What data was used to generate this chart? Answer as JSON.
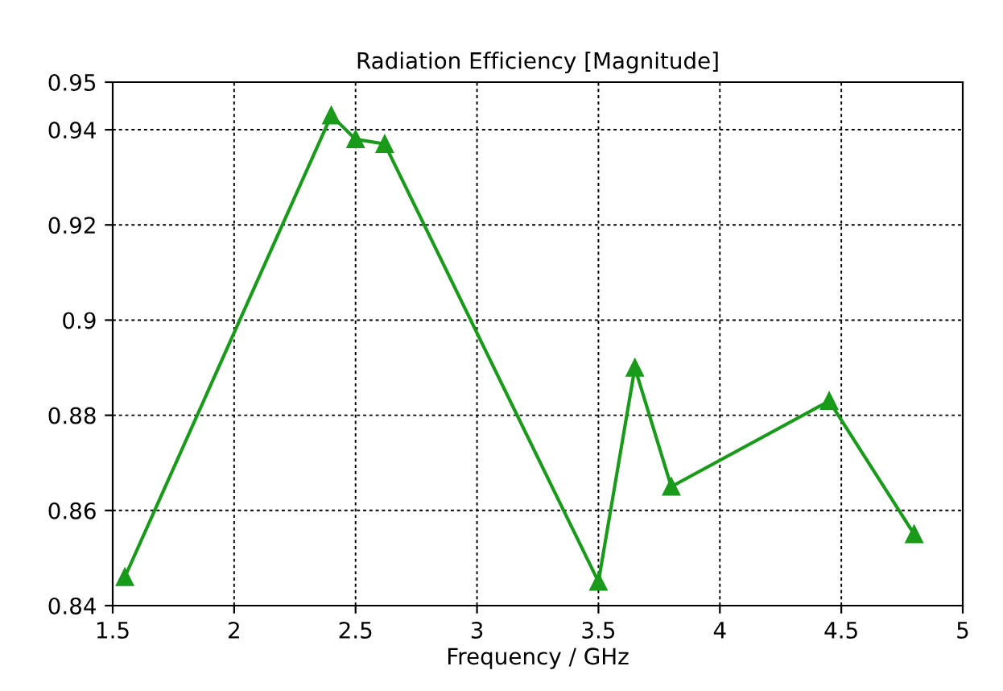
{
  "chart_data": {
    "type": "line",
    "title": "Radiation Efficiency [Magnitude]",
    "xlabel": "Frequency / GHz",
    "series": [
      {
        "color": "#1a9a1a",
        "x": [
          1.55,
          2.4,
          2.5,
          2.62,
          3.5,
          3.65,
          3.8,
          4.45,
          4.8
        ],
        "values": [
          0.846,
          0.943,
          0.938,
          0.937,
          0.845,
          0.89,
          0.865,
          0.883,
          0.855
        ]
      }
    ],
    "xlim": [
      1.5,
      5
    ],
    "xticks": [
      1.5,
      2,
      2.5,
      3,
      3.5,
      4,
      4.5,
      5
    ],
    "ylim": [
      0.84,
      0.95
    ],
    "yticks": [
      0.84,
      0.86,
      0.88,
      0.9,
      0.92,
      0.94,
      0.95
    ],
    "grid": true,
    "marker": "triangle",
    "line_style": "solid"
  }
}
